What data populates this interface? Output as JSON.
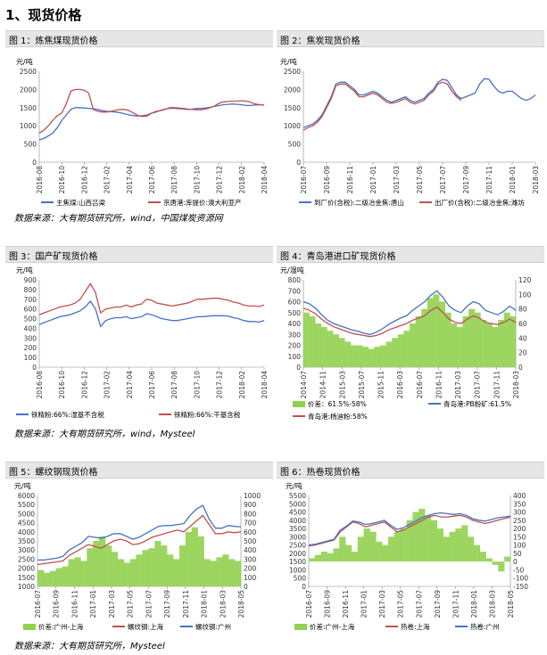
{
  "page": {
    "section_title": "1、现货价格"
  },
  "panels": [
    {
      "caption": "图 1：炼焦煤现货价格"
    },
    {
      "caption": "图 2：焦炭现货价格"
    },
    {
      "caption": "图 3：国产矿现货价格"
    },
    {
      "caption": "图 4：青岛港进口矿现货价格"
    },
    {
      "caption": "图 5：螺纹钢现货价格"
    },
    {
      "caption": "图 6：热卷现货价格"
    }
  ],
  "sources": [
    "数据来源：大有期货研究所，wind，中国煤炭资源网",
    "数据来源：大有期货研究所，wind，Mysteel",
    "数据来源：大有期货研究所，Mysteel"
  ],
  "chart_data": [
    {
      "type": "line",
      "ylabel": "元/吨",
      "ylim": [
        0,
        2500
      ],
      "yticks": [
        0,
        500,
        1000,
        1500,
        2000,
        2500
      ],
      "x_ticks": [
        "2016-08",
        "2016-10",
        "2016-12",
        "2017-02",
        "2017-04",
        "2017-06",
        "2017-08",
        "2017-10",
        "2017-12",
        "2018-02",
        "2018-04"
      ],
      "legend": "bottom",
      "series": [
        {
          "name": "主焦煤:山西吕梁",
          "color": "#4472c4",
          "values": [
            620,
            650,
            720,
            800,
            950,
            1150,
            1300,
            1450,
            1500,
            1500,
            1490,
            1480,
            1470,
            1450,
            1420,
            1400,
            1390,
            1380,
            1360,
            1330,
            1300,
            1280,
            1270,
            1280,
            1300,
            1350,
            1380,
            1430,
            1460,
            1480,
            1480,
            1470,
            1460,
            1450,
            1460,
            1480,
            1480,
            1490,
            1510,
            1540,
            1560,
            1580,
            1590,
            1600,
            1590,
            1580,
            1560,
            1560,
            1570,
            1580,
            1575
          ]
        },
        {
          "name": "京唐港:库提价:澳大利亚产",
          "color": "#c0504d",
          "values": [
            800,
            880,
            1000,
            1150,
            1280,
            1350,
            1600,
            1950,
            2000,
            2000,
            1980,
            1900,
            1450,
            1400,
            1380,
            1380,
            1400,
            1430,
            1450,
            1450,
            1420,
            1350,
            1280,
            1260,
            1270,
            1350,
            1400,
            1420,
            1450,
            1500,
            1500,
            1490,
            1480,
            1460,
            1450,
            1440,
            1440,
            1460,
            1500,
            1550,
            1620,
            1660,
            1670,
            1680,
            1680,
            1690,
            1680,
            1650,
            1600,
            1580,
            1575
          ]
        }
      ]
    },
    {
      "type": "line",
      "ylabel": "元/吨",
      "ylim": [
        0,
        2500
      ],
      "yticks": [
        0,
        500,
        1000,
        1500,
        2000,
        2500
      ],
      "x_ticks": [
        "2016-07",
        "2016-09",
        "2016-11",
        "2017-01",
        "2017-03",
        "2017-05",
        "2017-07",
        "2017-09",
        "2017-11",
        "2018-01",
        "2018-03"
      ],
      "legend": "bottom",
      "series": [
        {
          "name": "到厂价(含税):二级冶金焦:唐山",
          "color": "#4472c4",
          "values": [
            950,
            1000,
            1050,
            1150,
            1300,
            1550,
            1800,
            2150,
            2200,
            2200,
            2100,
            2000,
            1850,
            1850,
            1900,
            1950,
            1900,
            1800,
            1700,
            1650,
            1700,
            1750,
            1800,
            1700,
            1650,
            1700,
            1750,
            1900,
            2000,
            2200,
            2280,
            2250,
            2050,
            1850,
            1750,
            1800,
            1850,
            1900,
            2150,
            2300,
            2280,
            2100,
            1950,
            1900,
            1950,
            1950,
            1850,
            1750,
            1700,
            1750,
            1850
          ]
        },
        {
          "name": "出厂价(含税):二级冶金焦:潍坊",
          "color": "#c0504d",
          "values": [
            880,
            950,
            1000,
            1100,
            1250,
            1500,
            1750,
            2100,
            2150,
            2150,
            2050,
            1950,
            1800,
            1800,
            1850,
            1900,
            1850,
            1750,
            1650,
            1620,
            1650,
            1700,
            1750,
            1650,
            1600,
            1650,
            1700,
            1850,
            1950,
            2150,
            2200,
            2150,
            1950,
            1800,
            1700
          ]
        }
      ]
    },
    {
      "type": "line",
      "ylabel": "元/吨",
      "ylim": [
        0,
        900
      ],
      "yticks": [
        0,
        100,
        200,
        300,
        400,
        500,
        600,
        700,
        800,
        900
      ],
      "x_ticks": [
        "2016-08",
        "2016-10",
        "2016-12",
        "2017-02",
        "2017-04",
        "2017-06",
        "2017-08",
        "2017-10",
        "2017-12",
        "2018-02",
        "2018-04"
      ],
      "legend": "bottom",
      "series": [
        {
          "name": "铁精粉:66%:湿基不含税",
          "color": "#4472c4",
          "values": [
            440,
            460,
            480,
            500,
            520,
            530,
            540,
            560,
            580,
            620,
            680,
            600,
            420,
            480,
            500,
            510,
            510,
            520,
            500,
            510,
            520,
            550,
            540,
            520,
            500,
            490,
            480,
            480,
            490,
            500,
            510,
            520,
            520,
            525,
            530,
            530,
            530,
            525,
            510,
            500,
            480,
            470,
            470,
            465,
            480
          ]
        },
        {
          "name": "铁精粉:66%:干基含税",
          "color": "#c0504d",
          "values": [
            540,
            560,
            580,
            600,
            620,
            630,
            640,
            660,
            700,
            780,
            860,
            770,
            560,
            600,
            610,
            620,
            620,
            640,
            620,
            640,
            650,
            700,
            690,
            660,
            650,
            640,
            630,
            640,
            650,
            660,
            680,
            700,
            700,
            705,
            710,
            710,
            700,
            690,
            670,
            660,
            640,
            630,
            630,
            625,
            640
          ]
        }
      ]
    },
    {
      "type": "line",
      "ylabel": "元/湿吨",
      "ylim": [
        0,
        800
      ],
      "yticks": [
        0,
        100,
        200,
        300,
        400,
        500,
        600,
        700,
        800
      ],
      "y2lim": [
        0,
        120
      ],
      "y2ticks": [
        0,
        20,
        40,
        60,
        80,
        100,
        120
      ],
      "x_ticks": [
        "2014-07",
        "2014-11",
        "2015-03",
        "2015-07",
        "2015-11",
        "2016-03",
        "2016-07",
        "2016-11",
        "2017-03",
        "2017-07",
        "2017-11",
        "2018-03"
      ],
      "legend": "bottom",
      "series": [
        {
          "name": "价差：61.5%-58%",
          "color": "#92d050",
          "axis": "right",
          "values": [
            75,
            70,
            60,
            55,
            50,
            45,
            40,
            35,
            30,
            30,
            28,
            25,
            28,
            30,
            35,
            40,
            45,
            50,
            60,
            70,
            80,
            95,
            100,
            90,
            75,
            60,
            55,
            70,
            80,
            75,
            65,
            60,
            55,
            65,
            75,
            70
          ]
        },
        {
          "name": "青岛港:PB粉矿:61.5%",
          "color": "#4472c4",
          "values": [
            600,
            580,
            540,
            480,
            430,
            400,
            380,
            360,
            340,
            330,
            310,
            300,
            320,
            350,
            390,
            420,
            450,
            470,
            520,
            560,
            600,
            660,
            700,
            640,
            560,
            520,
            500,
            560,
            600,
            580,
            520,
            500,
            480,
            510,
            560,
            520
          ]
        },
        {
          "name": "青岛港:杨迪粉:58%",
          "color": "#c0504d",
          "values": [
            540,
            520,
            490,
            440,
            400,
            370,
            350,
            330,
            310,
            300,
            290,
            280,
            290,
            310,
            340,
            360,
            380,
            400,
            430,
            450,
            470,
            520,
            550,
            500,
            440,
            410,
            400,
            440,
            470,
            450,
            410,
            400,
            390,
            410,
            440,
            410
          ]
        }
      ]
    },
    {
      "type": "line",
      "ylabel": "元/吨",
      "ylim": [
        1000,
        6000
      ],
      "yticks": [
        1000,
        1500,
        2000,
        2500,
        3000,
        3500,
        4000,
        4500,
        5000,
        5500,
        6000
      ],
      "y2lim": [
        0,
        1000
      ],
      "y2ticks": [
        0,
        100,
        200,
        300,
        400,
        500,
        600,
        700,
        800,
        900,
        1000
      ],
      "x_ticks": [
        "2016-07",
        "2016-09",
        "2016-11",
        "2017-01",
        "2017-03",
        "2017-05",
        "2017-07",
        "2017-09",
        "2017-11",
        "2018-01",
        "2018-03",
        "2018-05"
      ],
      "legend": "bottom",
      "series": [
        {
          "name": "价差:广州-上海",
          "color": "#92d050",
          "axis": "right",
          "values": [
            180,
            150,
            170,
            200,
            220,
            300,
            320,
            280,
            420,
            500,
            550,
            450,
            380,
            300,
            260,
            300,
            350,
            400,
            420,
            500,
            450,
            350,
            300,
            450,
            600,
            650,
            550,
            300,
            280,
            320,
            350,
            300,
            280
          ]
        },
        {
          "name": "螺纹钢:上海",
          "color": "#c0504d",
          "values": [
            2200,
            2250,
            2300,
            2350,
            2400,
            2700,
            2900,
            3100,
            3300,
            3200,
            3100,
            3300,
            3500,
            3600,
            3500,
            3300,
            3350,
            3500,
            3700,
            3800,
            3900,
            4000,
            4100,
            4000,
            4300,
            4600,
            4900,
            4400,
            3900,
            3900,
            4000,
            3950,
            4000
          ]
        },
        {
          "name": "螺纹钢:广州",
          "color": "#4472c4",
          "values": [
            2450,
            2450,
            2500,
            2550,
            2650,
            3000,
            3200,
            3400,
            3750,
            3700,
            3650,
            3750,
            3900,
            3900,
            3750,
            3600,
            3700,
            3900,
            4100,
            4300,
            4350,
            4350,
            4400,
            4450,
            4900,
            5250,
            5450,
            4700,
            4200,
            4200,
            4350,
            4300,
            4280
          ]
        }
      ]
    },
    {
      "type": "line",
      "ylabel": "元/吨",
      "ylim": [
        0,
        5500
      ],
      "yticks": [
        0,
        500,
        1000,
        1500,
        2000,
        2500,
        3000,
        3500,
        4000,
        4500,
        5000,
        5500
      ],
      "y2lim": [
        -150,
        400
      ],
      "y2ticks": [
        -150,
        -100,
        -50,
        0,
        50,
        100,
        150,
        200,
        250,
        300,
        350,
        400
      ],
      "x_ticks": [
        "2016-07",
        "2016-09",
        "2016-11",
        "2017-01",
        "2017-03",
        "2017-05",
        "2017-07",
        "2017-09",
        "2017-11",
        "2018-01",
        "2018-03",
        "2018-05"
      ],
      "legend": "bottom",
      "series": [
        {
          "name": "价差:广州-上海",
          "color": "#92d050",
          "axis": "right",
          "values": [
            20,
            40,
            60,
            50,
            80,
            150,
            100,
            60,
            150,
            200,
            180,
            120,
            100,
            150,
            180,
            200,
            250,
            300,
            320,
            280,
            250,
            200,
            150,
            180,
            200,
            220,
            150,
            100,
            60,
            20,
            -20,
            -60,
            30
          ]
        },
        {
          "name": "热卷:上海",
          "color": "#c0504d",
          "values": [
            2450,
            2500,
            2600,
            2700,
            2800,
            3300,
            3600,
            3900,
            3800,
            3600,
            3700,
            3800,
            3900,
            3600,
            3300,
            3400,
            3600,
            3800,
            4000,
            4200,
            4300,
            4200,
            4200,
            4250,
            4300,
            4200,
            4000,
            3900,
            3800,
            3900,
            4000,
            4100,
            4200
          ]
        },
        {
          "name": "热卷:广州",
          "color": "#4472c4",
          "values": [
            2500,
            2550,
            2650,
            2750,
            2850,
            3400,
            3650,
            3950,
            3900,
            3750,
            3800,
            3900,
            4000,
            3700,
            3450,
            3550,
            3750,
            3950,
            4150,
            4300,
            4400,
            4450,
            4400,
            4350,
            4400,
            4300,
            4100,
            4000,
            3950,
            4050,
            4150,
            4200,
            4250
          ]
        }
      ]
    }
  ]
}
